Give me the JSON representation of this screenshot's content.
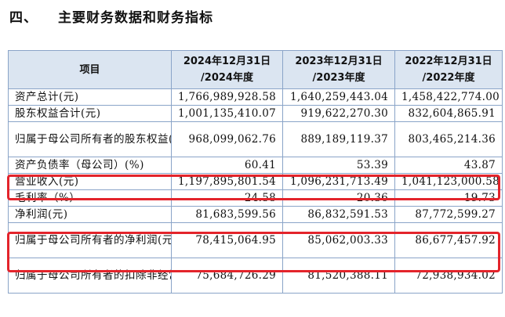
{
  "section": {
    "number": "四、",
    "title": "主要财务数据和财务指标"
  },
  "table": {
    "header": {
      "item": "项目",
      "columns": [
        {
          "line1": "2024年12月31日",
          "line2": "/2024年度"
        },
        {
          "line1": "2023年12月31日",
          "line2": "/2023年度"
        },
        {
          "line1": "2022年12月31日",
          "line2": "/2022年度"
        }
      ]
    },
    "rows": [
      {
        "label": "资产总计(元)",
        "values": [
          "1,766,989,928.58",
          "1,640,259,443.04",
          "1,458,422,774.00"
        ]
      },
      {
        "label": "股东权益合计(元)",
        "values": [
          "1,001,135,410.07",
          "919,622,270.30",
          "832,604,865.91"
        ]
      },
      {
        "label": "归属于母公司所有者的股东权益(元)",
        "values": [
          "968,099,062.76",
          "889,189,119.37",
          "803,465,214.36"
        ]
      },
      {
        "label": "资产负债率（母公司）(%)",
        "values": [
          "60.41",
          "53.39",
          "43.87"
        ]
      },
      {
        "label": "营业收入(元)",
        "values": [
          "1,197,895,801.54",
          "1,096,231,713.49",
          "1,041,123,000.58"
        ]
      },
      {
        "label": "毛利率（%）",
        "values": [
          "24.58",
          "20.36",
          "19.73"
        ]
      },
      {
        "label": "净利润(元)",
        "values": [
          "81,683,599.56",
          "86,832,591.53",
          "87,772,599.27"
        ]
      },
      {
        "label": "归属于母公司所有者的净利润(元)",
        "values": [
          "78,415,064.95",
          "85,062,003.33",
          "86,677,457.92"
        ]
      },
      {
        "label": "归属于母公司所有者的扣除非经常性损益后的净利润",
        "values": [
          "75,684,726.29",
          "81,520,388.11",
          "72,938,934.02"
        ]
      }
    ]
  },
  "highlight_color": "#e3242b"
}
